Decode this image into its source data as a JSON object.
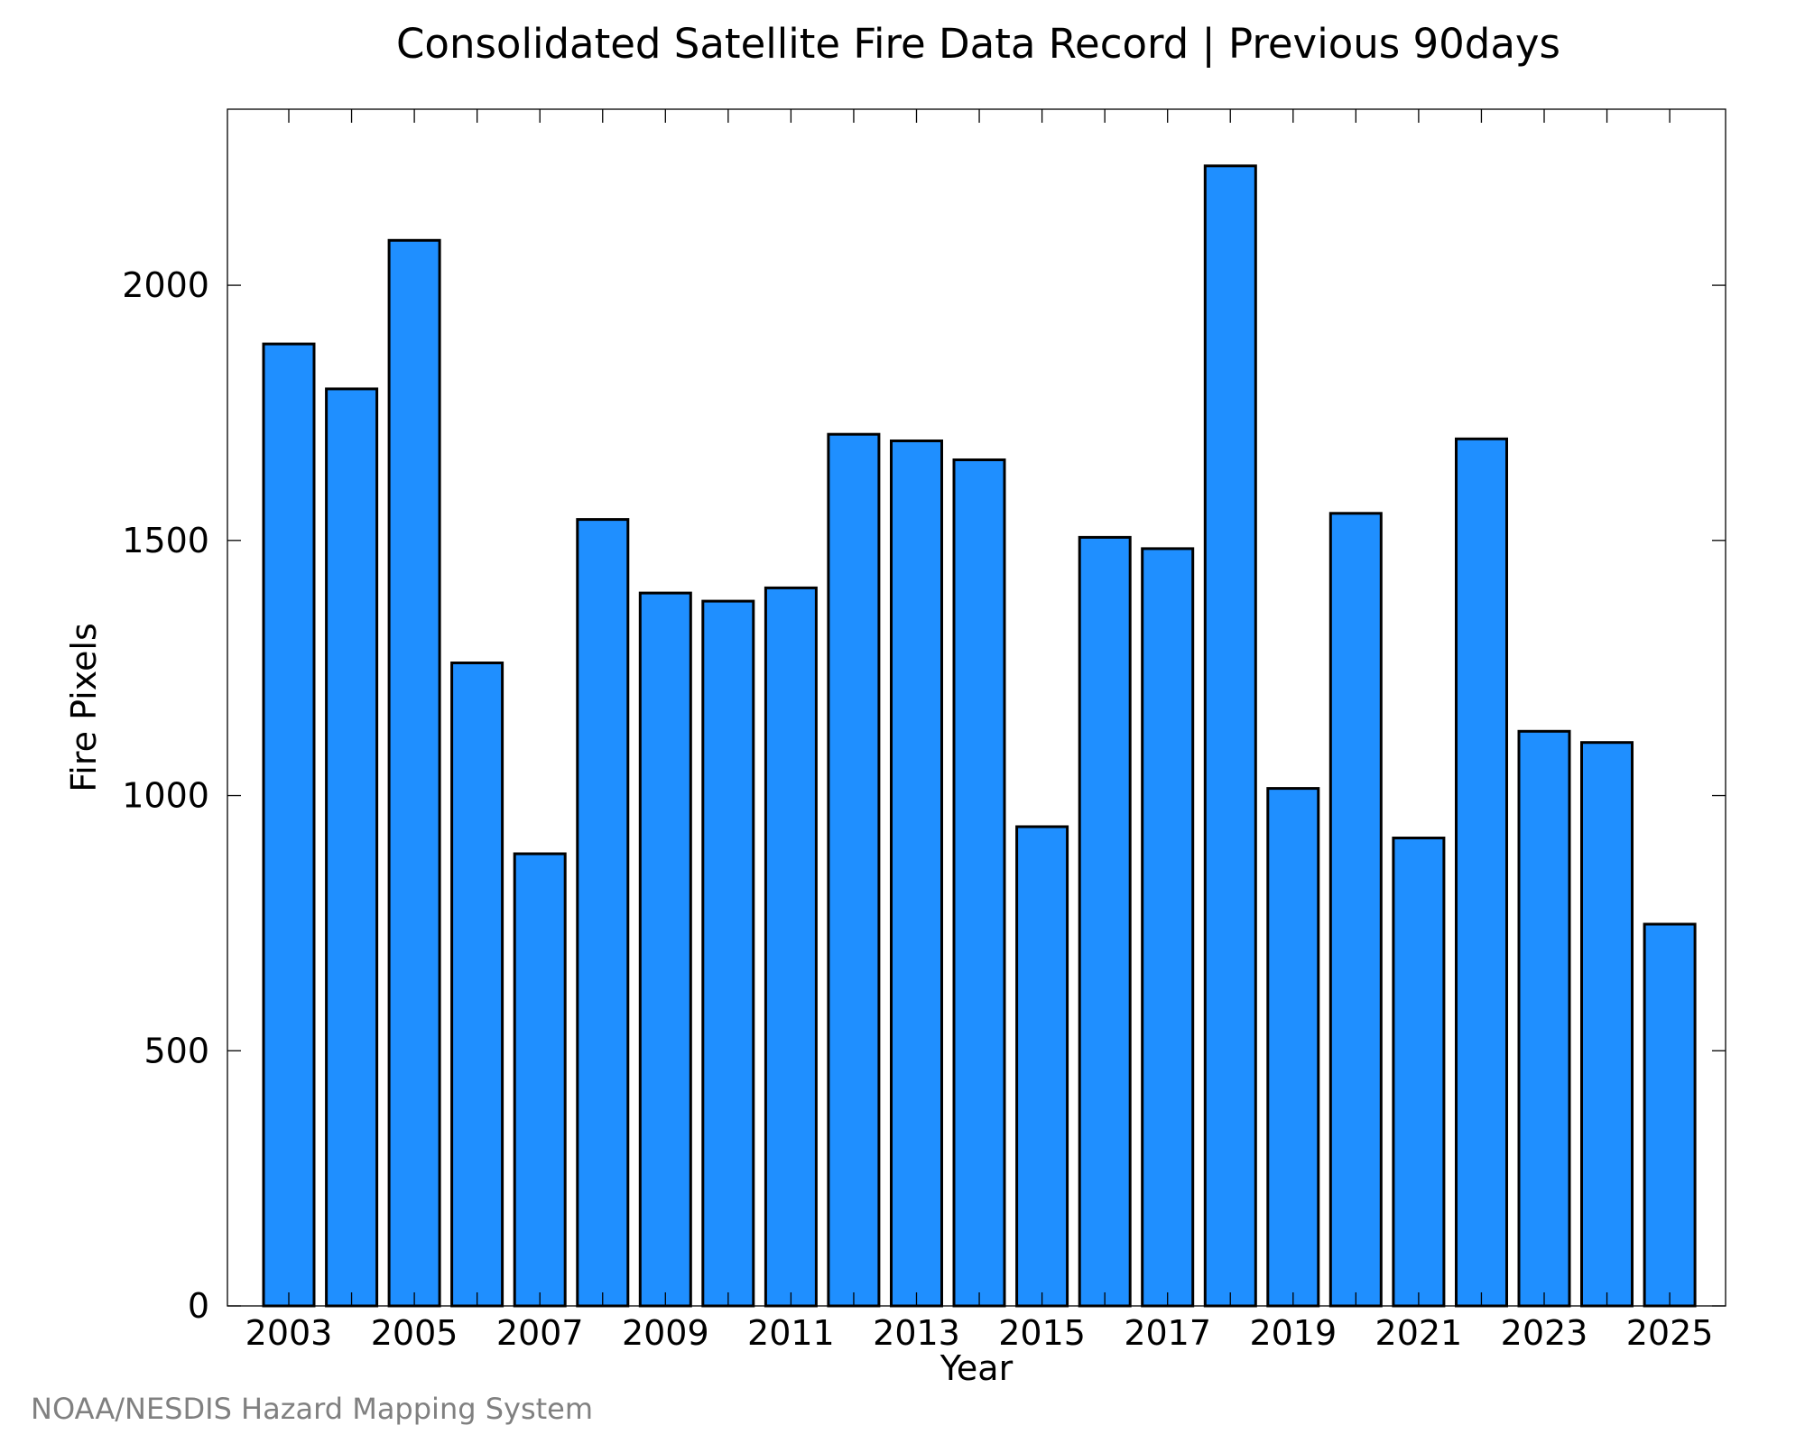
{
  "chart_data": {
    "type": "bar",
    "title": "Consolidated Satellite Fire Data Record | Previous 90days",
    "xlabel": "Year",
    "ylabel": "Fire Pixels",
    "credit": "NOAA/NESDIS Hazard Mapping System",
    "categories": [
      "2003",
      "2004",
      "2005",
      "2006",
      "2007",
      "2008",
      "2009",
      "2010",
      "2011",
      "2012",
      "2013",
      "2014",
      "2015",
      "2016",
      "2017",
      "2018",
      "2019",
      "2020",
      "2021",
      "2022",
      "2023",
      "2024",
      "2025"
    ],
    "values": [
      1885,
      1797,
      2088,
      1260,
      886,
      1541,
      1397,
      1381,
      1407,
      1708,
      1695,
      1658,
      939,
      1506,
      1484,
      2234,
      1014,
      1553,
      917,
      1699,
      1126,
      1104,
      748
    ],
    "xtick_labels": [
      "2003",
      "2005",
      "2007",
      "2009",
      "2011",
      "2013",
      "2015",
      "2017",
      "2019",
      "2021",
      "2023",
      "2025"
    ],
    "yticks": [
      0,
      500,
      1000,
      1500,
      2000
    ],
    "ylim": [
      0,
      2345
    ],
    "bar_color": "#1f8fff",
    "grid": false
  }
}
